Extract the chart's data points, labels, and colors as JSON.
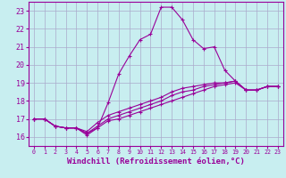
{
  "xlabel": "Windchill (Refroidissement éolien,°C)",
  "bg_color": "#c8eef0",
  "line_color": "#990099",
  "xlim": [
    -0.5,
    23.5
  ],
  "ylim": [
    15.5,
    23.5
  ],
  "yticks": [
    16,
    17,
    18,
    19,
    20,
    21,
    22,
    23
  ],
  "xticks": [
    0,
    1,
    2,
    3,
    4,
    5,
    6,
    7,
    8,
    9,
    10,
    11,
    12,
    13,
    14,
    15,
    16,
    17,
    18,
    19,
    20,
    21,
    22,
    23
  ],
  "series": [
    [
      17.0,
      17.0,
      16.6,
      16.5,
      16.5,
      16.1,
      16.5,
      17.9,
      19.5,
      20.5,
      21.4,
      21.7,
      23.2,
      23.2,
      22.5,
      21.4,
      20.9,
      21.0,
      19.7,
      19.1,
      18.6,
      18.6,
      18.8,
      18.8
    ],
    [
      17.0,
      17.0,
      16.6,
      16.5,
      16.5,
      16.3,
      16.8,
      17.2,
      17.4,
      17.6,
      17.8,
      18.0,
      18.2,
      18.5,
      18.7,
      18.8,
      18.9,
      19.0,
      19.0,
      19.1,
      18.6,
      18.6,
      18.8,
      18.8
    ],
    [
      17.0,
      17.0,
      16.6,
      16.5,
      16.5,
      16.2,
      16.6,
      17.0,
      17.2,
      17.4,
      17.6,
      17.8,
      18.0,
      18.3,
      18.5,
      18.6,
      18.8,
      18.9,
      19.0,
      19.1,
      18.6,
      18.6,
      18.8,
      18.8
    ],
    [
      17.0,
      17.0,
      16.6,
      16.5,
      16.5,
      16.2,
      16.5,
      16.9,
      17.0,
      17.2,
      17.4,
      17.6,
      17.8,
      18.0,
      18.2,
      18.4,
      18.6,
      18.8,
      18.9,
      19.0,
      18.6,
      18.6,
      18.8,
      18.8
    ]
  ],
  "grid_color": "#aaaacc",
  "xlabel_fontsize": 6.5,
  "xtick_fontsize": 4.8,
  "ytick_fontsize": 6.0
}
